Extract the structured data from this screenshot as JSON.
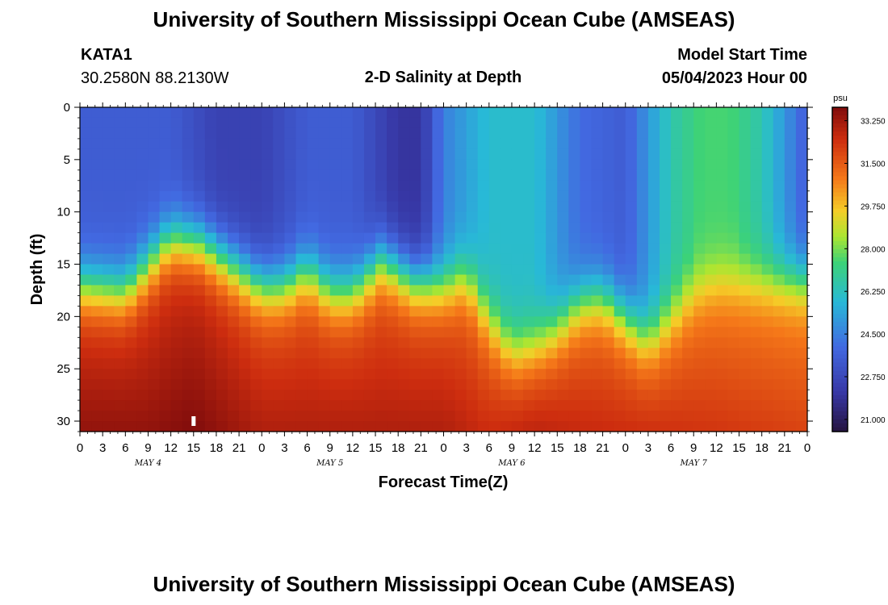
{
  "header": {
    "title": "University of Southern Mississippi Ocean Cube (AMSEAS)",
    "station_id": "KATA1",
    "station_coords": "30.2580N  88.2130W",
    "model_start_label": "Model Start Time",
    "model_start_value": "05/04/2023 Hour 00",
    "plot_title": "2-D Salinity at Depth"
  },
  "footer": {
    "title": "University of Southern Mississippi Ocean Cube (AMSEAS)"
  },
  "chart_data": {
    "type": "heatmap",
    "title": "2-D Salinity at Depth",
    "xlabel": "Forecast Time(Z)",
    "ylabel": "Depth (ft)",
    "x_ticks": [
      "0",
      "3",
      "6",
      "9",
      "12",
      "15",
      "18",
      "21",
      "0",
      "3",
      "6",
      "9",
      "12",
      "15",
      "18",
      "21",
      "0",
      "3",
      "6",
      "9",
      "12",
      "15",
      "18",
      "21",
      "0",
      "3",
      "6",
      "9",
      "12",
      "15",
      "18",
      "21",
      "0"
    ],
    "x_range_hours": [
      0,
      96
    ],
    "y_ticks": [
      0,
      5,
      10,
      15,
      20,
      25,
      30
    ],
    "y_range_ft": [
      0,
      31
    ],
    "day_labels": [
      {
        "label": "MAY 4",
        "hour": 9
      },
      {
        "label": "MAY 5",
        "hour": 33
      },
      {
        "label": "MAY 6",
        "hour": 57
      },
      {
        "label": "MAY 7",
        "hour": 81
      }
    ],
    "colorbar": {
      "unit": "psu",
      "min": 20.5,
      "max": 33.8,
      "tick_values": [
        33.25,
        31.5,
        29.75,
        28.0,
        26.25,
        24.5,
        22.75,
        21.0
      ],
      "tick_labels": [
        "33.250",
        "31.500",
        "29.750",
        "28.000",
        "26.250",
        "24.500",
        "22.750",
        "21.000"
      ]
    },
    "halocline_depth_ft": {
      "hours": [
        0,
        6,
        9,
        12,
        16,
        21,
        24,
        27,
        30,
        33,
        36,
        40,
        44,
        48,
        51,
        54,
        57,
        60,
        63,
        66,
        69,
        72,
        75,
        78,
        81,
        84,
        87,
        90,
        93,
        96
      ],
      "values": [
        17,
        17.5,
        15,
        12.5,
        13,
        15.5,
        17,
        17,
        15.5,
        17.5,
        17.5,
        14.5,
        16.5,
        17,
        16,
        20,
        23,
        22.5,
        21,
        18.5,
        18,
        20,
        22,
        20,
        17.5,
        16.5,
        16.5,
        16.5,
        16.5,
        16.5
      ]
    },
    "surface_salinity_psu": {
      "hours": [
        0,
        12,
        18,
        24,
        30,
        36,
        42,
        45,
        48,
        54,
        60,
        66,
        72,
        78,
        82,
        86,
        90,
        96
      ],
      "values": [
        23.5,
        23.5,
        22.5,
        22.5,
        23.5,
        23.5,
        22.0,
        22.0,
        24.5,
        26.0,
        26.0,
        24.0,
        23.5,
        26.5,
        27.5,
        27.5,
        26.5,
        23.5
      ]
    },
    "bottom_salinity_psu": {
      "hours": [
        0,
        9,
        15,
        24,
        36,
        48,
        54,
        60,
        66,
        72,
        84,
        96
      ],
      "values": [
        33.5,
        33.5,
        33.8,
        33.0,
        33.0,
        33.0,
        32.5,
        32.8,
        32.6,
        32.5,
        32.3,
        32.0
      ]
    },
    "marker": {
      "hour": 15,
      "depth_ft": 30
    }
  }
}
